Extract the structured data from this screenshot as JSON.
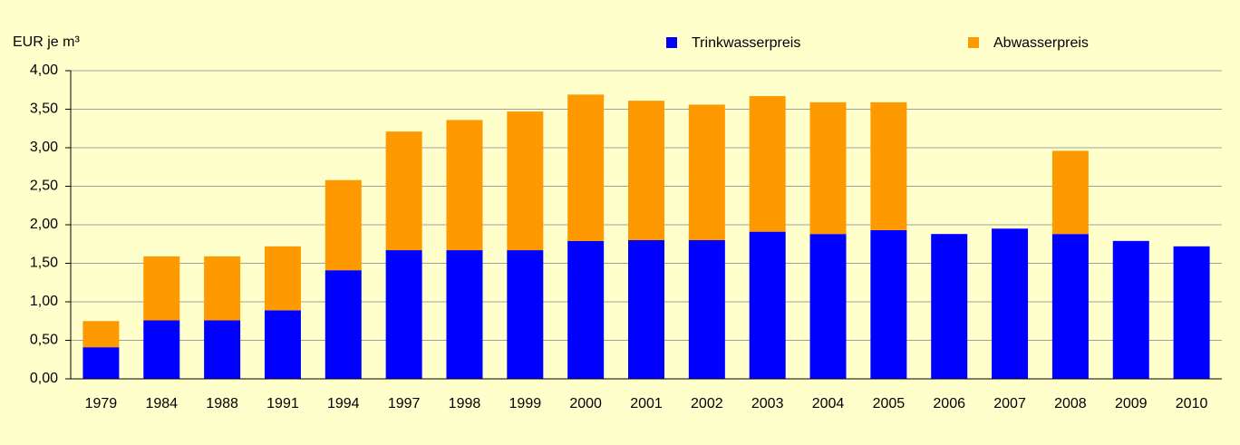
{
  "chart_data": {
    "type": "stacked_bar",
    "y_axis_label": "EUR je m³",
    "categories": [
      "1979",
      "1984",
      "1988",
      "1991",
      "1994",
      "1997",
      "1998",
      "1999",
      "2000",
      "2001",
      "2002",
      "2003",
      "2004",
      "2005",
      "2006",
      "2007",
      "2008",
      "2009",
      "2010"
    ],
    "series": [
      {
        "name": "Trinkwasserpreis",
        "color": "#0000ff",
        "values": [
          0.41,
          0.76,
          0.76,
          0.89,
          1.41,
          1.67,
          1.67,
          1.67,
          1.79,
          1.8,
          1.8,
          1.91,
          1.88,
          1.93,
          1.88,
          1.95,
          1.88,
          1.79,
          1.72
        ]
      },
      {
        "name": "Abwasserpreis",
        "color": "#ff9900",
        "values": [
          0.34,
          0.83,
          0.83,
          0.83,
          1.17,
          1.54,
          1.69,
          1.8,
          1.9,
          1.81,
          1.76,
          1.76,
          1.71,
          1.66,
          null,
          null,
          1.08,
          null,
          null
        ]
      }
    ],
    "ylim": [
      0,
      4
    ],
    "yticks": [
      {
        "value": 0,
        "label": "0,00"
      },
      {
        "value": 0.5,
        "label": "0,50"
      },
      {
        "value": 1,
        "label": "1,00"
      },
      {
        "value": 1.5,
        "label": "1,50"
      },
      {
        "value": 2,
        "label": "2,00"
      },
      {
        "value": 2.5,
        "label": "2,50"
      },
      {
        "value": 3,
        "label": "3,00"
      },
      {
        "value": 3.5,
        "label": "3,50"
      },
      {
        "value": 4,
        "label": "4,00"
      }
    ],
    "grid": true
  }
}
